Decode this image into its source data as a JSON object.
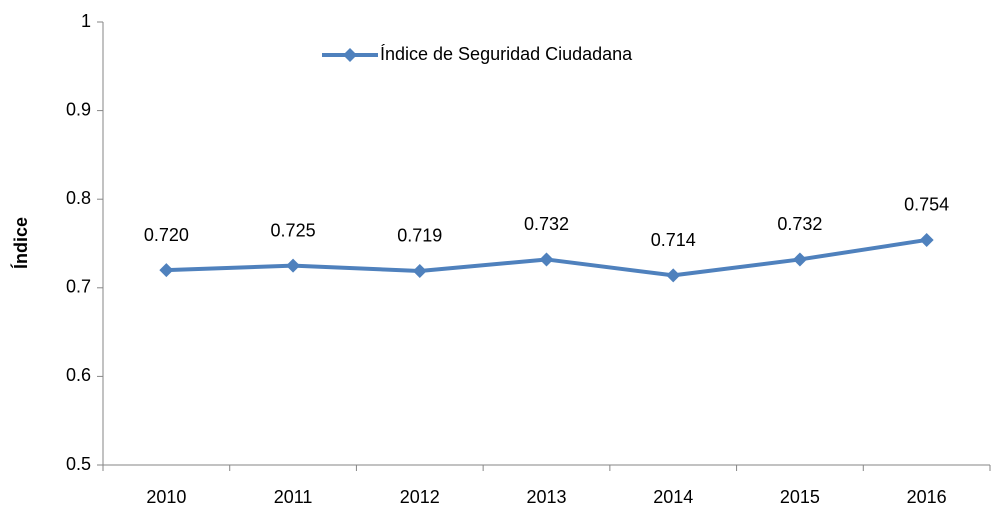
{
  "chart_data": {
    "type": "line",
    "y_label": "Índice",
    "categories": [
      "2010",
      "2011",
      "2012",
      "2013",
      "2014",
      "2015",
      "2016"
    ],
    "series": [
      {
        "name": "Índice de Seguridad Ciudadana",
        "color": "#4f81bd",
        "values": [
          0.72,
          0.725,
          0.719,
          0.732,
          0.714,
          0.732,
          0.754
        ],
        "value_labels": [
          "0.720",
          "0.725",
          "0.719",
          "0.732",
          "0.714",
          "0.732",
          "0.754"
        ]
      }
    ],
    "ylim": [
      0.5,
      1
    ],
    "yticks": [
      0.5,
      0.6,
      0.7,
      0.8,
      0.9,
      1
    ],
    "grid": false,
    "legend": "top"
  }
}
